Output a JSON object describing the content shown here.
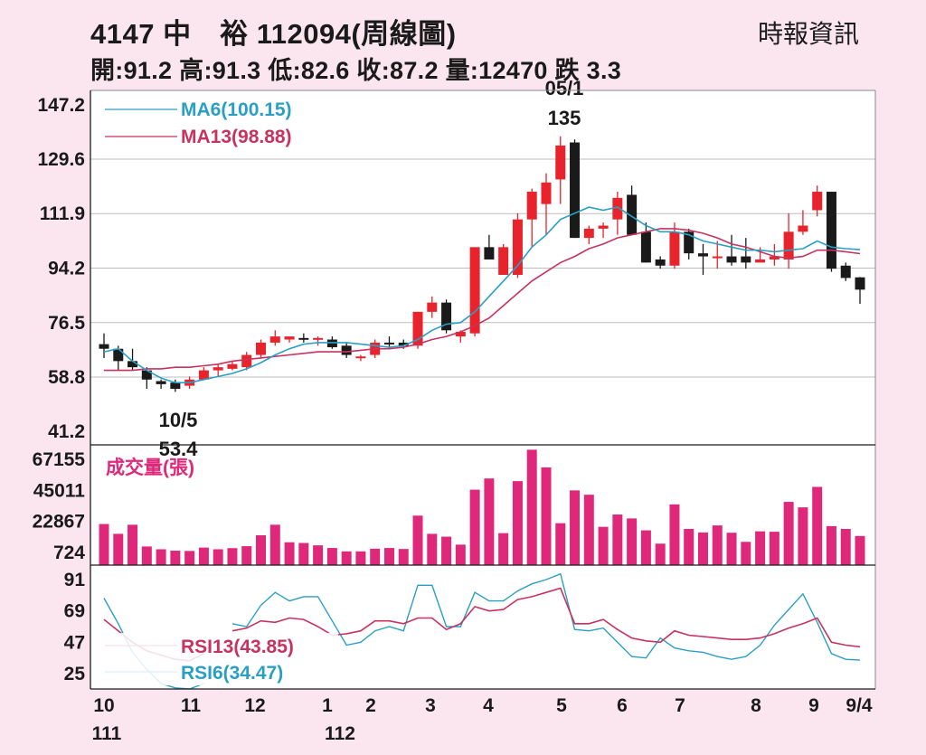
{
  "header": {
    "title": "4147 中　裕 112094(周線圖)",
    "source": "時報資訊",
    "summary": "開:91.2 高:91.3 低:82.6 收:87.2 量:12470 跌 3.3"
  },
  "colors": {
    "up": "#e8232c",
    "down": "#1a1a1a",
    "ma6": "#2a9fc4",
    "ma13": "#c8325e",
    "volume": "#e0287a",
    "grid": "#bdbdbd"
  },
  "chart_data": [
    {
      "type": "candlestick",
      "ylim": [
        41.2,
        147.2
      ],
      "yticks": [
        "147.2",
        "129.6",
        "111.9",
        "94.2",
        "76.5",
        "58.8",
        "41.2"
      ],
      "ohlc": [
        [
          69.5,
          73,
          65,
          68
        ],
        [
          68,
          69,
          61,
          64
        ],
        [
          64,
          68,
          61,
          62
        ],
        [
          61,
          62,
          55,
          58
        ],
        [
          57.5,
          58,
          55,
          56.5
        ],
        [
          57,
          58,
          54,
          55
        ],
        [
          56,
          59,
          55,
          58
        ],
        [
          58,
          62,
          58,
          61
        ],
        [
          61,
          63,
          59,
          62
        ],
        [
          61.5,
          64,
          61,
          63
        ],
        [
          62,
          67,
          61,
          66
        ],
        [
          66,
          71,
          65,
          70
        ],
        [
          70,
          74,
          69,
          72
        ],
        [
          71,
          72,
          70,
          72
        ],
        [
          71.5,
          73,
          70,
          71
        ],
        [
          71,
          72,
          69,
          71.5
        ],
        [
          71,
          72,
          68,
          68.5
        ],
        [
          69,
          70,
          65,
          66
        ],
        [
          65,
          66,
          64,
          65.5
        ],
        [
          66,
          71,
          65,
          70
        ],
        [
          70,
          72,
          68,
          69.5
        ],
        [
          70,
          71,
          68,
          69
        ],
        [
          69,
          80,
          68,
          80
        ],
        [
          80,
          85,
          78,
          83
        ],
        [
          83,
          84,
          73,
          74
        ],
        [
          72,
          74,
          70,
          73.5
        ],
        [
          73,
          101,
          72,
          101
        ],
        [
          101,
          105,
          97,
          97
        ],
        [
          92,
          102,
          92,
          101
        ],
        [
          92,
          112,
          91,
          110
        ],
        [
          110,
          120,
          101,
          119
        ],
        [
          115,
          125,
          105,
          122
        ],
        [
          123,
          137,
          115,
          134
        ],
        [
          135,
          136,
          104,
          104
        ],
        [
          104,
          108,
          102,
          107
        ],
        [
          107,
          109,
          104,
          108
        ],
        [
          110,
          119,
          105,
          117
        ],
        [
          118,
          121,
          105,
          105
        ],
        [
          106,
          109,
          96,
          96
        ],
        [
          97,
          98,
          94,
          95
        ],
        [
          95,
          109,
          94,
          106
        ],
        [
          106,
          107,
          97,
          99
        ],
        [
          99,
          102,
          92,
          98
        ],
        [
          98,
          103,
          94,
          98
        ],
        [
          98,
          105,
          95,
          96
        ],
        [
          98,
          104,
          94,
          96
        ],
        [
          96,
          101,
          96,
          97
        ],
        [
          97,
          102,
          95,
          98
        ],
        [
          97,
          112,
          94,
          106
        ],
        [
          106,
          113,
          105,
          108
        ],
        [
          113,
          121,
          111,
          119
        ],
        [
          119,
          119,
          93,
          94
        ],
        [
          95,
          96,
          90,
          91
        ],
        [
          91.2,
          91.3,
          82.6,
          87.2
        ]
      ],
      "ma6": [
        67,
        68,
        64,
        61,
        58.5,
        57,
        57,
        58,
        59,
        60,
        61.5,
        63.5,
        66,
        68,
        69.5,
        70,
        70,
        70,
        69.5,
        69,
        68.5,
        69,
        71,
        74,
        76,
        76.5,
        80,
        85,
        90,
        95,
        101,
        105,
        110,
        112,
        114,
        113,
        114,
        111,
        108,
        106,
        106,
        105,
        103,
        102,
        101,
        100,
        100,
        99.5,
        100,
        100.5,
        103,
        101,
        100.5,
        100.2
      ],
      "ma13": [
        61,
        61,
        61,
        61.5,
        61.5,
        62,
        62,
        62.5,
        63,
        64,
        64.5,
        65,
        65.5,
        66,
        66.5,
        67,
        67,
        67,
        67.5,
        68,
        68,
        68.5,
        69.5,
        71,
        72,
        73.5,
        75.5,
        78,
        82,
        86,
        90,
        93,
        96,
        98,
        100.5,
        102,
        104,
        105,
        106,
        107,
        107,
        106.5,
        105.5,
        104,
        102,
        101,
        99.5,
        98,
        97.5,
        98,
        100,
        100,
        99.5,
        98.9
      ],
      "legend": [
        "MA6(100.15)",
        "MA13(98.88)"
      ],
      "annotations": [
        {
          "label": "05/1",
          "value": "135"
        },
        {
          "label": "10/5",
          "value": "53.4"
        }
      ]
    },
    {
      "type": "bar",
      "title": "成交量(張)",
      "ylim": [
        724,
        67155
      ],
      "yticks": [
        "67155",
        "45011",
        "22867",
        "724"
      ],
      "values": [
        21000,
        14000,
        20500,
        5000,
        3000,
        2000,
        1800,
        4200,
        3000,
        3800,
        5200,
        13000,
        20500,
        8000,
        7500,
        5800,
        3900,
        1500,
        1500,
        3400,
        3900,
        3200,
        27000,
        14000,
        12000,
        6300,
        45500,
        53500,
        14500,
        51600,
        74000,
        61400,
        21600,
        45000,
        41900,
        19000,
        27800,
        25000,
        16500,
        7000,
        35000,
        17500,
        15000,
        20000,
        14800,
        8300,
        15800,
        15500,
        36800,
        32900,
        47500,
        19500,
        17500,
        12470
      ],
      "legend": [
        "成交量(張)"
      ]
    },
    {
      "type": "line",
      "ylim": [
        14,
        95
      ],
      "yticks": [
        "91",
        "69",
        "47",
        "25"
      ],
      "series": [
        {
          "name": "RSI13(43.85)",
          "values": [
            63,
            55,
            47,
            41,
            38,
            35,
            34,
            39,
            null,
            55,
            57,
            62,
            61,
            64,
            63,
            58,
            52,
            53,
            55,
            62,
            62,
            60,
            64,
            64,
            56,
            60,
            72,
            69,
            70,
            77,
            79,
            82,
            85,
            60,
            60,
            63,
            56,
            50,
            48,
            47,
            55,
            52,
            51,
            50,
            49,
            49,
            50,
            53,
            57,
            60,
            64,
            47,
            45,
            43.85
          ]
        },
        {
          "name": "RSI6(34.47)",
          "values": [
            78,
            60,
            40,
            28,
            18,
            15,
            12,
            18,
            null,
            60,
            58,
            73,
            82,
            76,
            79,
            79,
            62,
            45,
            47,
            55,
            58,
            55,
            87,
            87,
            58,
            58,
            82,
            76,
            76,
            83,
            88,
            91,
            95,
            56,
            55,
            57,
            47,
            37,
            36,
            50,
            43,
            41,
            40,
            37,
            35,
            37,
            45,
            59,
            70,
            81,
            61,
            39,
            35,
            34.47
          ]
        }
      ],
      "legend": [
        "RSI13(43.85)",
        "RSI6(34.47)"
      ]
    }
  ],
  "xaxis": {
    "months": [
      "10",
      "11",
      "12",
      "1",
      "2",
      "3",
      "4",
      "5",
      "6",
      "7",
      "8",
      "9",
      "9/4"
    ],
    "years": [
      "111",
      "112"
    ]
  }
}
